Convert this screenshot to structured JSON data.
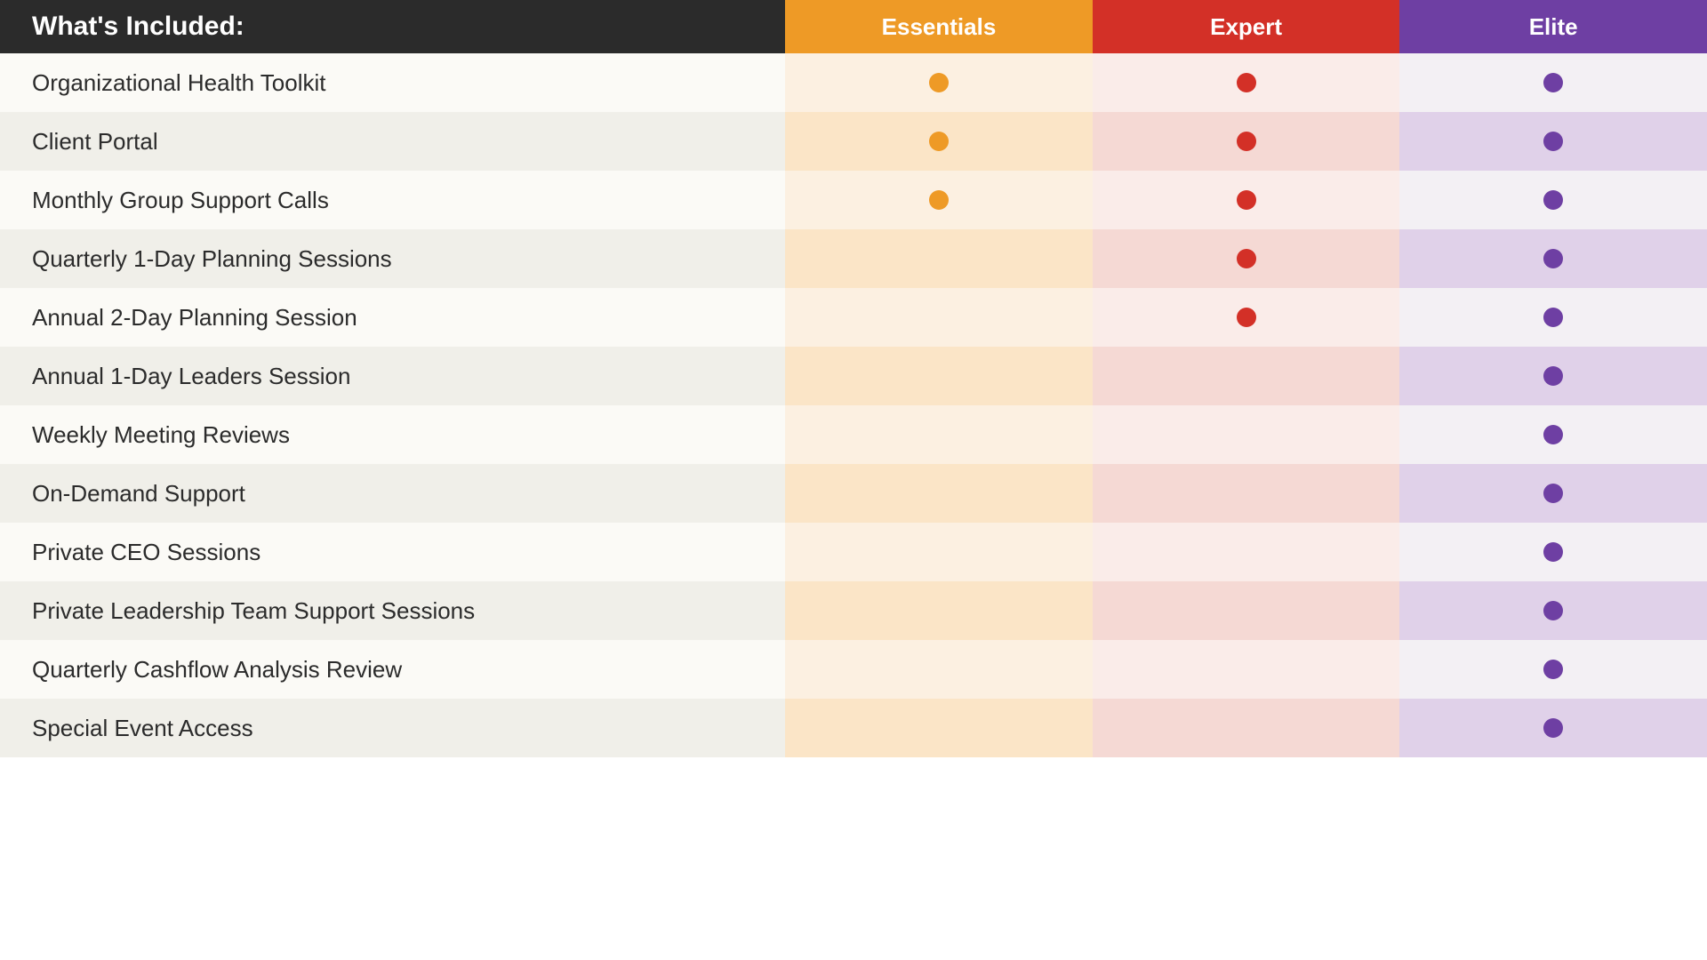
{
  "header_title": "What's Included:",
  "tiers": [
    {
      "key": "essentials",
      "label": "Essentials",
      "header_bg": "#ee9a26",
      "dot_color": "#ee9a26",
      "bg_light": "#fcf0e1",
      "bg_dark": "#fbe5c7"
    },
    {
      "key": "expert",
      "label": "Expert",
      "header_bg": "#d33027",
      "dot_color": "#d33027",
      "bg_light": "#faece9",
      "bg_dark": "#f5d9d4"
    },
    {
      "key": "elite",
      "label": "Elite",
      "header_bg": "#6e3fa3",
      "dot_color": "#6e3fa3",
      "bg_light": "#f3f0f4",
      "bg_dark": "#e0d1e9"
    }
  ],
  "feature_bg_light": "#fbfaf6",
  "feature_bg_dark": "#f0efe9",
  "header_feature_bg": "#2b2b2b",
  "features": [
    {
      "label": "Organizational Health Toolkit",
      "essentials": true,
      "expert": true,
      "elite": true
    },
    {
      "label": "Client Portal",
      "essentials": true,
      "expert": true,
      "elite": true
    },
    {
      "label": "Monthly Group Support Calls",
      "essentials": true,
      "expert": true,
      "elite": true
    },
    {
      "label": "Quarterly 1-Day Planning Sessions",
      "essentials": false,
      "expert": true,
      "elite": true
    },
    {
      "label": "Annual 2-Day Planning Session",
      "essentials": false,
      "expert": true,
      "elite": true
    },
    {
      "label": "Annual 1-Day Leaders Session",
      "essentials": false,
      "expert": false,
      "elite": true
    },
    {
      "label": "Weekly Meeting Reviews",
      "essentials": false,
      "expert": false,
      "elite": true
    },
    {
      "label": "On-Demand Support",
      "essentials": false,
      "expert": false,
      "elite": true
    },
    {
      "label": "Private CEO Sessions",
      "essentials": false,
      "expert": false,
      "elite": true
    },
    {
      "label": "Private Leadership Team Support Sessions",
      "essentials": false,
      "expert": false,
      "elite": true
    },
    {
      "label": "Quarterly Cashflow Analysis Review",
      "essentials": false,
      "expert": false,
      "elite": true
    },
    {
      "label": "Special Event Access",
      "essentials": false,
      "expert": false,
      "elite": true
    }
  ]
}
